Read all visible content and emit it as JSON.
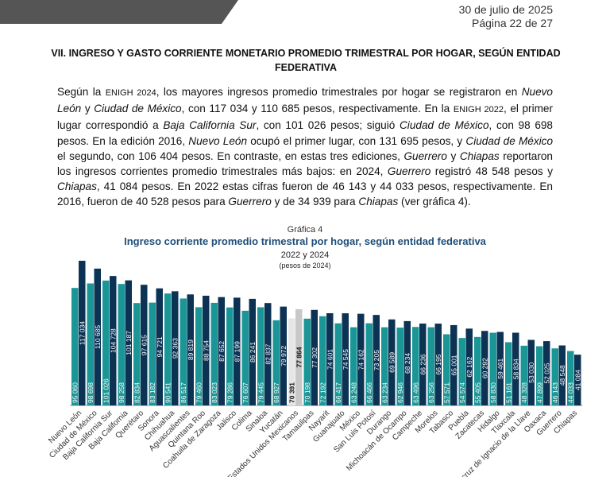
{
  "header": {
    "date": "30 de julio de 2025",
    "page": "Página 22 de 27"
  },
  "section_title": "VII. INGRESO Y GASTO CORRIENTE MONETARIO PROMEDIO TRIMESTRAL POR HOGAR, SEGÚN ENTIDAD FEDERATIVA",
  "paragraph": [
    {
      "t": "Según la ",
      "s": ""
    },
    {
      "t": "ENIGH 2024",
      "s": "sc"
    },
    {
      "t": ", los mayores ingresos promedio trimestrales por hogar se registraron en ",
      "s": ""
    },
    {
      "t": "Nuevo León",
      "s": "it"
    },
    {
      "t": " y ",
      "s": ""
    },
    {
      "t": "Ciudad de México",
      "s": "it"
    },
    {
      "t": ", con 117 034 y 110 685 pesos, respectivamente. En la ",
      "s": ""
    },
    {
      "t": "ENIGH 2022",
      "s": "sc"
    },
    {
      "t": ", el primer lugar correspondió a ",
      "s": ""
    },
    {
      "t": "Baja California Sur",
      "s": "it"
    },
    {
      "t": ", con 101 026 pesos; siguió ",
      "s": ""
    },
    {
      "t": "Ciudad de México",
      "s": "it"
    },
    {
      "t": ", con 98 698 pesos. En la edición 2016, ",
      "s": ""
    },
    {
      "t": "Nuevo León",
      "s": "it"
    },
    {
      "t": " ocupó el primer lugar, con 131 695 pesos, y ",
      "s": ""
    },
    {
      "t": "Ciudad de México",
      "s": "it"
    },
    {
      "t": " el segundo, con 106 404 pesos. En contraste, en estas tres ediciones, ",
      "s": ""
    },
    {
      "t": "Guerrero",
      "s": "it"
    },
    {
      "t": " y ",
      "s": ""
    },
    {
      "t": "Chiapas",
      "s": "it"
    },
    {
      "t": " reportaron los ingresos corrientes promedio trimestrales más bajos: en 2024, ",
      "s": ""
    },
    {
      "t": "Guerrero",
      "s": "it"
    },
    {
      "t": " registró 48 548 pesos y ",
      "s": ""
    },
    {
      "t": "Chiapas",
      "s": "it"
    },
    {
      "t": ", 41 084 pesos. En 2022 estas cifras fueron de 46 143 y 44 033 pesos, respectivamente. En 2016, fueron de 40 528 pesos para ",
      "s": ""
    },
    {
      "t": "Guerrero",
      "s": "it"
    },
    {
      "t": " y de 34 939 para ",
      "s": ""
    },
    {
      "t": "Chiapas",
      "s": "it"
    },
    {
      "t": " (ver gráfica 4).",
      "s": ""
    }
  ],
  "chart_data": {
    "type": "bar",
    "label": "Gráfica 4",
    "title": "Ingreso corriente promedio trimestral por hogar, según entidad federativa",
    "subtitle": "2022 y 2024",
    "units": "(pesos de 2024)",
    "categories": [
      "Nuevo León",
      "Ciudad de México",
      "Baja California Sur",
      "Baja California",
      "Querétaro",
      "Sonora",
      "Chihuahua",
      "Aguascalientes",
      "Quintana Roo",
      "Coahuila de Zaragoza",
      "Jalisco",
      "Colima",
      "Sinaloa",
      "Yucatán",
      "Estados Unidos Mexicanos",
      "Tamaulipas",
      "Nayarit",
      "Guanajuato",
      "México",
      "San Luis Potosí",
      "Durango",
      "Michoacán de Ocampo",
      "Campeche",
      "Morelos",
      "Tabasco",
      "Puebla",
      "Zacatecas",
      "Hidalgo",
      "Tlaxcala",
      "Veracruz de Ignacio de la Llave",
      "Oaxaca",
      "Guerrero",
      "Chiapas"
    ],
    "series": [
      {
        "year": "2022",
        "values": [
          95060,
          98698,
          101026,
          98258,
          82834,
          83182,
          90541,
          86517,
          79460,
          83023,
          79286,
          76607,
          79445,
          68927,
          70391,
          70198,
          72192,
          66417,
          63248,
          66466,
          63234,
          62946,
          63496,
          63256,
          57571,
          54574,
          55405,
          58830,
          51161,
          48328,
          47899,
          46143,
          44033
        ]
      },
      {
        "year": "2024",
        "values": [
          117034,
          110685,
          104728,
          101187,
          97615,
          94721,
          92363,
          89819,
          88754,
          87652,
          87199,
          86241,
          82837,
          79972,
          77864,
          77302,
          74601,
          74545,
          74162,
          73205,
          69589,
          68234,
          66236,
          66195,
          65001,
          62162,
          60292,
          59461,
          58834,
          53030,
          52025,
          48548,
          41084
        ]
      }
    ],
    "highlight_category": "Estados Unidos Mexicanos",
    "colors": {
      "2022": "#1b9697",
      "2024": "#0c3254",
      "national_2022": "#e6e6e6",
      "national_2024": "#c8c8c8",
      "title": "#1f4e79"
    }
  }
}
